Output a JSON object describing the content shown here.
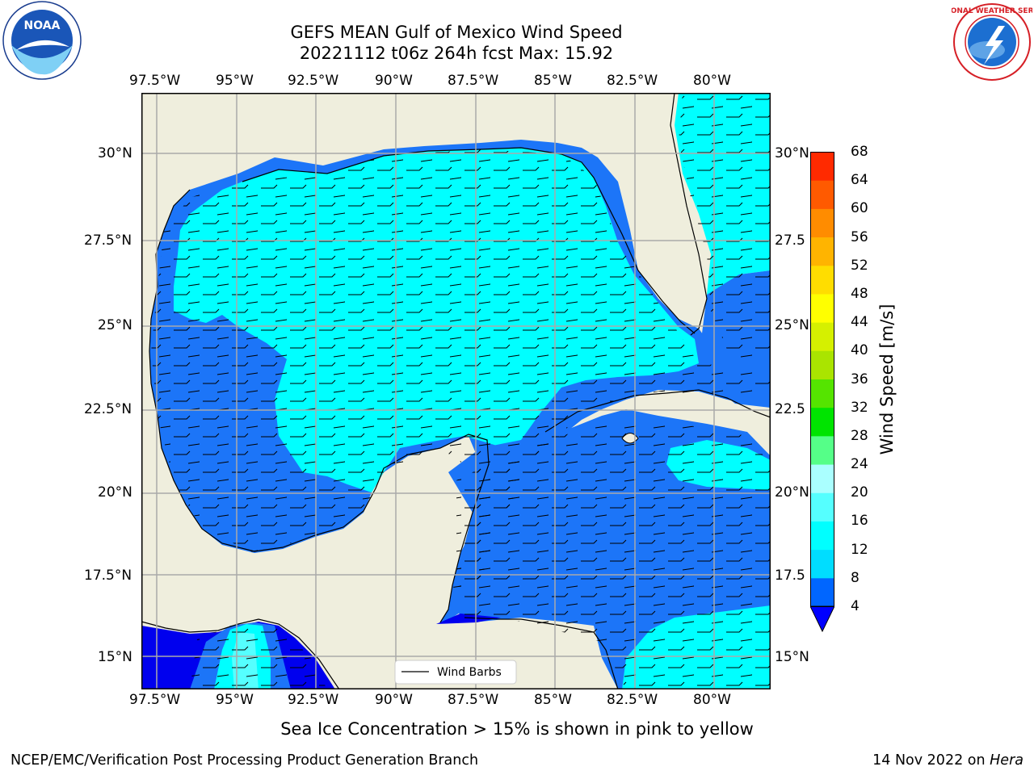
{
  "title": {
    "line1": "GEFS MEAN Gulf of Mexico Wind Speed",
    "line2": "20221112 t06z 264h fcst   Max: 15.92"
  },
  "axes": {
    "lon_labels": [
      "97.5°W",
      "95°W",
      "92.5°W",
      "90°W",
      "87.5°W",
      "85°W",
      "82.5°W",
      "80°W"
    ],
    "lat_labels": [
      "30°N",
      "27.5°N",
      "25°N",
      "22.5°N",
      "20°N",
      "17.5°N",
      "15°N"
    ],
    "lat_labels_right": [
      "30°N",
      "27.5",
      "25°N",
      "22.5",
      "20°N",
      "17.5",
      "15°N"
    ],
    "lon_range": [
      -98,
      -78.25
    ],
    "lat_range": [
      14,
      31.75
    ]
  },
  "legend": {
    "wind_barbs_label": "Wind Barbs"
  },
  "colorbar": {
    "label": "Wind Speed [m/s]",
    "ticks": [
      "4",
      "8",
      "12",
      "16",
      "20",
      "24",
      "28",
      "32",
      "36",
      "40",
      "44",
      "48",
      "52",
      "56",
      "60",
      "64",
      "68"
    ],
    "colors": [
      "#0066ff",
      "#00ddff",
      "#00ffff",
      "#55ffff",
      "#aaffff",
      "#55ff88",
      "#00e400",
      "#55e400",
      "#aae400",
      "#d5f000",
      "#ffff00",
      "#ffdd00",
      "#ffb400",
      "#ff8c00",
      "#ff5a00",
      "#ff2a00",
      "#ff0000"
    ],
    "under_color": "#0000ff"
  },
  "map_colors": {
    "land": "#efeedd",
    "ocean_4_8": "#1c75f8",
    "ocean_8_12": "#00ffff",
    "ocean_lt4": "#0000ee",
    "grid": "#aaaaaa"
  },
  "footer": {
    "sea_ice_note": "Sea Ice Concentration > 15% is shown in pink to yellow",
    "credit_left": "NCEP/EMC/Verification Post Processing Product Generation Branch",
    "credit_date": "14 Nov 2022 on ",
    "credit_machine": "Hera"
  },
  "logos": {
    "left": "noaa-logo",
    "right": "nws-logo",
    "right_text": "NATIONAL WEATHER SERVICE"
  }
}
